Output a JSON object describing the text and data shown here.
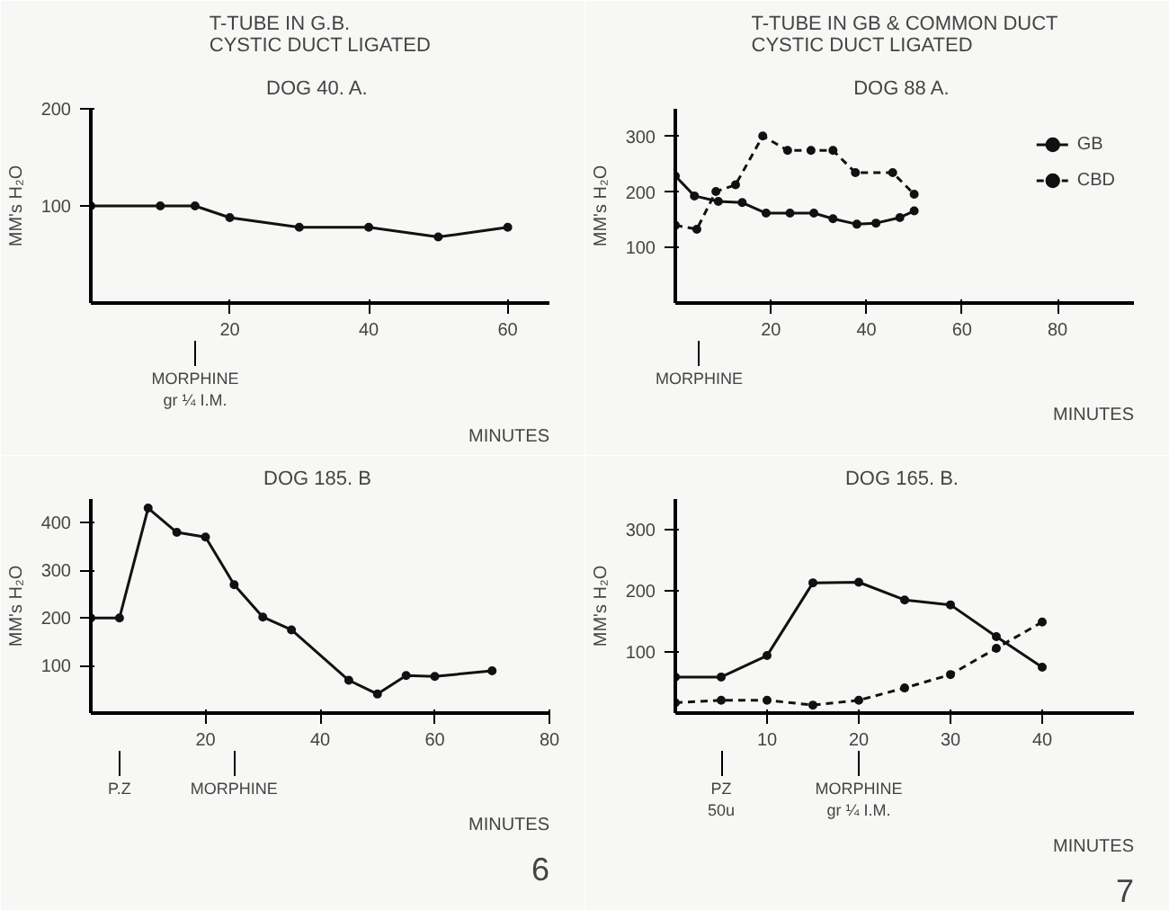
{
  "chart_data": [
    {
      "type": "line",
      "title": "T-TUBE IN G.B.\nCYSTIC DUCT LIGATED",
      "subtitle": "DOG 40.  A.",
      "xlabel": "MINUTES",
      "ylabel": "MM's H₂O",
      "xlim": [
        0,
        66
      ],
      "ylim": [
        0,
        200
      ],
      "xticks": [
        20,
        40,
        60
      ],
      "yticks": [
        100,
        200
      ],
      "marker": "circle",
      "grid": false,
      "series": [
        {
          "color": "#111111",
          "line_style": "solid",
          "x": [
            0,
            10,
            15,
            20,
            30,
            40,
            50,
            60
          ],
          "values": [
            100,
            100,
            100,
            88,
            78,
            78,
            68,
            78
          ]
        }
      ],
      "annotations": [
        {
          "text": "MORPHINE\ngr ¼ I.M.",
          "x": 15
        }
      ]
    },
    {
      "type": "line",
      "title": "T-TUBE IN GB & COMMON DUCT\nCYSTIC DUCT LIGATED",
      "subtitle": "DOG 88  A.",
      "xlabel": "MINUTES",
      "ylabel": "MM's H₂O",
      "xlim": [
        0,
        96
      ],
      "ylim": [
        0,
        350
      ],
      "xticks": [
        20,
        40,
        60,
        80
      ],
      "yticks": [
        100,
        200,
        300
      ],
      "marker": "circle",
      "grid": false,
      "legend": "top right",
      "series": [
        {
          "name": "GB",
          "color": "#111111",
          "line_style": "solid",
          "x": [
            0,
            4,
            9,
            14,
            19,
            24,
            29,
            33,
            38,
            42,
            47,
            50
          ],
          "values": [
            229,
            193,
            183,
            181,
            162,
            162,
            162,
            152,
            142,
            144,
            154,
            166
          ]
        },
        {
          "name": "CBD",
          "color": "#111111",
          "line_style": "dashed",
          "x": [
            0,
            4.5,
            8.5,
            12.6,
            18.3,
            23.5,
            28.4,
            33,
            37.7,
            45.5,
            50
          ],
          "values": [
            140,
            133,
            201,
            213,
            301,
            275,
            275,
            275,
            235,
            235,
            196
          ]
        }
      ],
      "annotations": [
        {
          "text": "MORPHINE",
          "x": 5
        }
      ]
    },
    {
      "type": "line",
      "subtitle": "DOG 185.  B",
      "xlabel": "MINUTES",
      "ylabel": "MM's H₂O",
      "xlim": [
        0,
        80
      ],
      "ylim": [
        0,
        450
      ],
      "xticks": [
        20,
        40,
        60,
        80
      ],
      "yticks": [
        100,
        200,
        300,
        400
      ],
      "marker": "circle",
      "grid": false,
      "series": [
        {
          "color": "#111111",
          "line_style": "solid",
          "x": [
            0,
            5,
            10,
            15,
            20,
            25,
            30,
            35,
            45,
            50,
            55,
            60,
            70
          ],
          "values": [
            200,
            200,
            431,
            380,
            370,
            270,
            202,
            175,
            69,
            40,
            79,
            77,
            89
          ]
        }
      ],
      "annotations": [
        {
          "text": "P.Z",
          "x": 5
        },
        {
          "text": "MORPHINE",
          "x": 25
        },
        "6"
      ]
    },
    {
      "type": "line",
      "subtitle": "DOG 165.  B.",
      "xlabel": "MINUTES",
      "ylabel": "MM's H₂O",
      "xlim": [
        0,
        50
      ],
      "ylim": [
        0,
        350
      ],
      "xticks": [
        10,
        20,
        30,
        40
      ],
      "yticks": [
        100,
        200,
        300
      ],
      "marker": "circle",
      "grid": false,
      "series": [
        {
          "color": "#111111",
          "line_style": "solid",
          "x": [
            0,
            5,
            10,
            15,
            20,
            25,
            30,
            35,
            40
          ],
          "values": [
            59,
            59,
            94,
            213,
            214,
            185,
            177,
            125,
            75
          ]
        },
        {
          "color": "#111111",
          "line_style": "dashed",
          "x": [
            0,
            5,
            10,
            15,
            20,
            25,
            30,
            35,
            40
          ],
          "values": [
            17,
            21,
            21,
            13,
            21,
            41,
            63,
            106,
            149
          ]
        }
      ],
      "annotations": [
        {
          "text": "PZ\n50u",
          "x": 5
        },
        {
          "text": "MORPHINE\ngr ¼ I.M.",
          "x": 20
        },
        "7"
      ]
    }
  ]
}
